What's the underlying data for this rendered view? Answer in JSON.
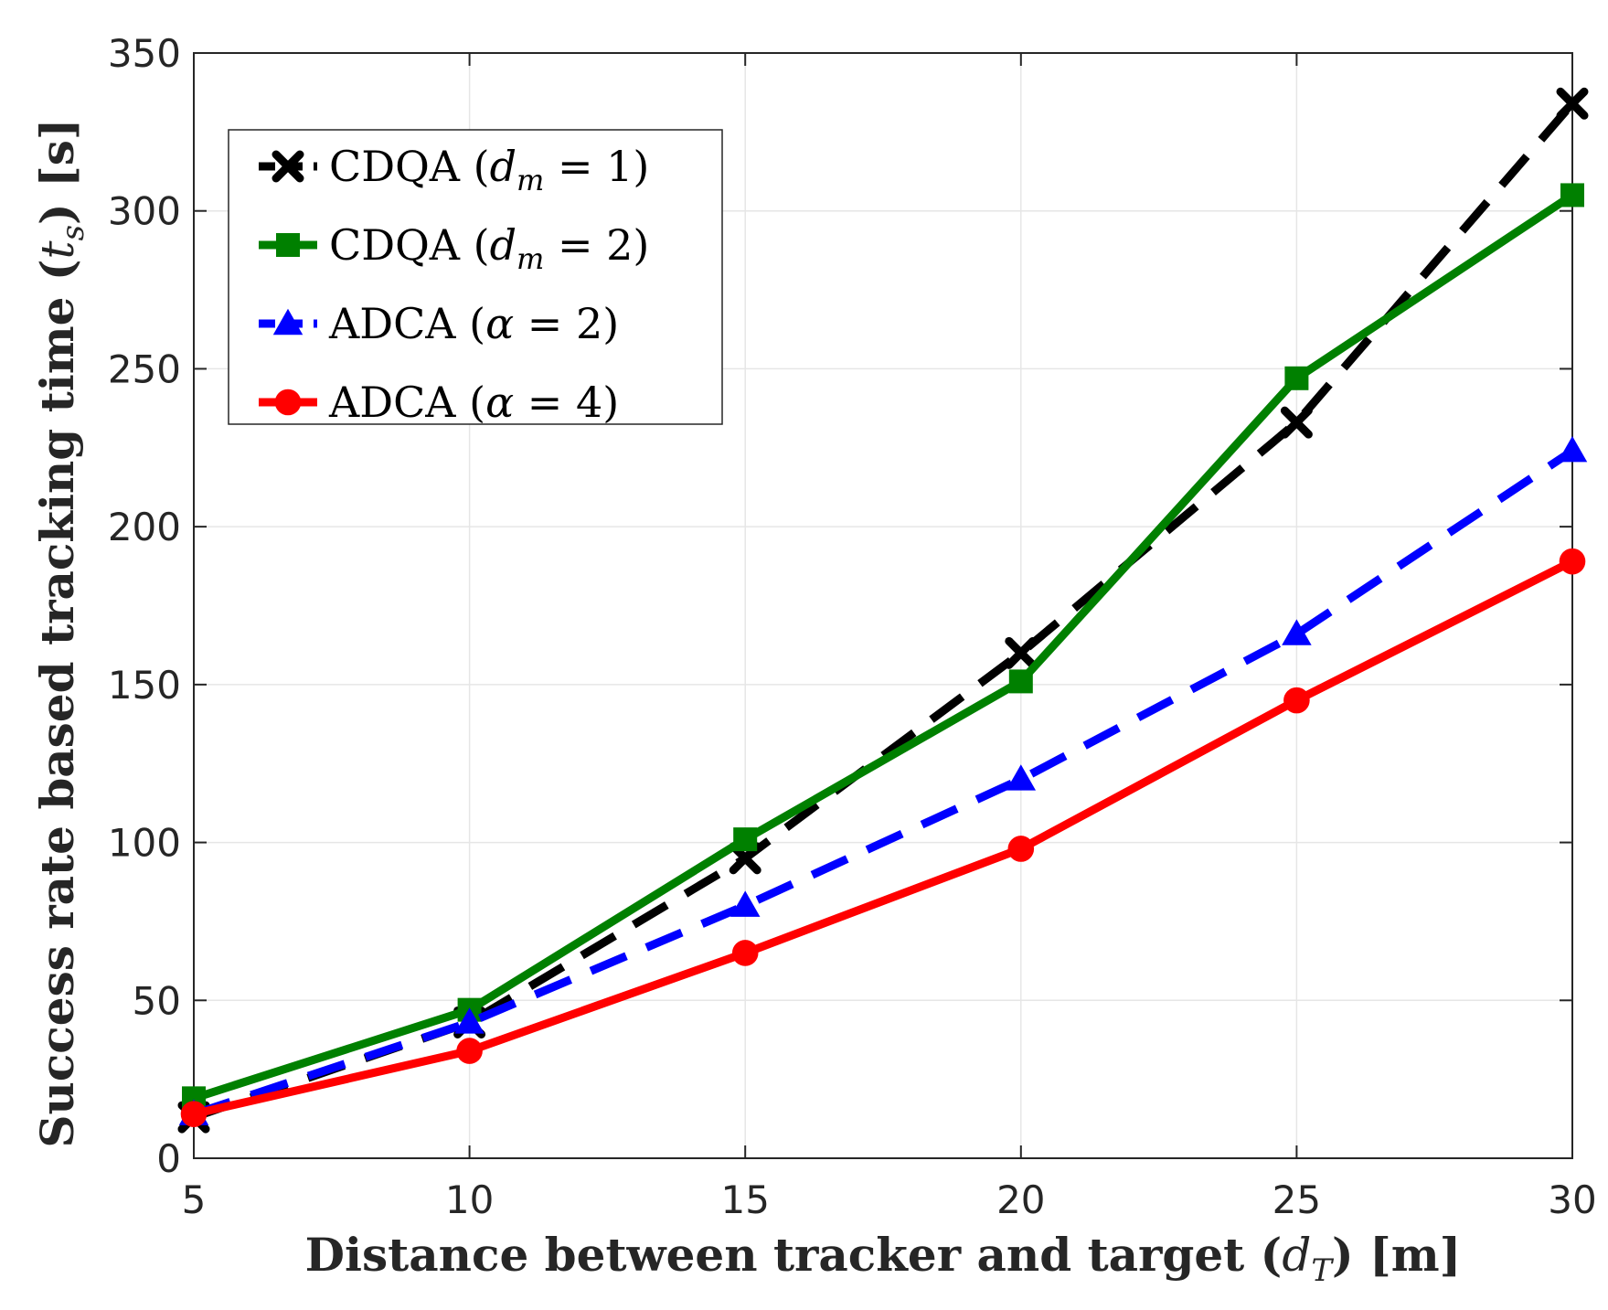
{
  "chart_data": {
    "type": "line",
    "title": "",
    "xlabel": "Distance between tracker and target (d_T) [m]",
    "ylabel": "Success rate based tracking time (t_s) [s]",
    "xlabel_parts": {
      "main": "Distance between tracker and target (",
      "var": "d",
      "sub": "T",
      "end": ") [m]"
    },
    "ylabel_parts": {
      "main": "Success rate based tracking time (",
      "var": "t",
      "sub": "s",
      "end": ") [s]"
    },
    "x": [
      5,
      10,
      15,
      20,
      25,
      30
    ],
    "xlim": [
      5,
      30
    ],
    "ylim": [
      0,
      350
    ],
    "xticks": [
      5,
      10,
      15,
      20,
      25,
      30
    ],
    "yticks": [
      0,
      50,
      100,
      150,
      200,
      250,
      300,
      350
    ],
    "grid": true,
    "legend_position": "top-left",
    "series": [
      {
        "name": "CDQA (d_m = 1)",
        "label": {
          "pre": "CDQA (",
          "var": "d",
          "sub": "m",
          "post": " = 1)"
        },
        "values": [
          13,
          43,
          95,
          160,
          233,
          334
        ],
        "color": "#000000",
        "dash": "dashed",
        "marker": "x"
      },
      {
        "name": "CDQA (d_m = 2)",
        "label": {
          "pre": "CDQA (",
          "var": "d",
          "sub": "m",
          "post": " = 2)"
        },
        "values": [
          19,
          47,
          101,
          151,
          247,
          305
        ],
        "color": "#008000",
        "dash": "solid",
        "marker": "square"
      },
      {
        "name": "ADCA (α = 2)",
        "label": {
          "pre": "ADCA (",
          "var": "α",
          "sub": "",
          "post": " = 2)"
        },
        "values": [
          14,
          43,
          80,
          120,
          166,
          224
        ],
        "color": "#0000ff",
        "dash": "dashed",
        "marker": "triangle"
      },
      {
        "name": "ADCA (α = 4)",
        "label": {
          "pre": "ADCA (",
          "var": "α",
          "sub": "",
          "post": " = 4)"
        },
        "values": [
          14,
          34,
          65,
          98,
          145,
          189
        ],
        "color": "#ff0000",
        "dash": "solid",
        "marker": "circle"
      }
    ]
  }
}
